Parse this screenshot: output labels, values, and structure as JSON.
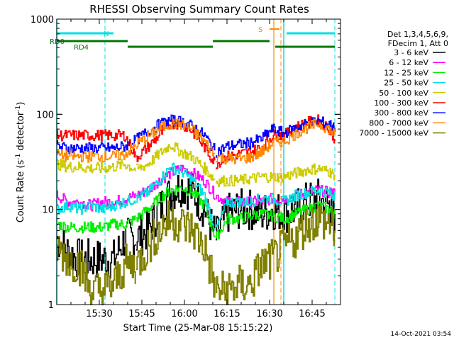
{
  "chart_data": {
    "type": "line",
    "title": "RHESSI Observing Summary Count Rates",
    "xlabel": "Start Time (25-Mar-08 15:15:22)",
    "ylabel": "Count Rate (s^-1 detector^-1)",
    "yscale": "log",
    "ylim": [
      1,
      1000
    ],
    "xlim_minutes": [
      0,
      100
    ],
    "x_ticks": [
      "15:30",
      "15:45",
      "16:00",
      "16:15",
      "16:30",
      "16:45"
    ],
    "x_tick_minutes": [
      15,
      30,
      45,
      60,
      75,
      90
    ],
    "y_ticks": [
      "1",
      "10",
      "100",
      "1000"
    ],
    "legend_header": [
      "Det 1,3,4,5,6,9,",
      "FDecim 1, Att 0"
    ],
    "timestamp": "14-Oct-2021 03:54",
    "flags": {
      "n_label": "N",
      "s_label": "S",
      "rd0_label": "RD0",
      "rd4_label": "RD4",
      "n_color": "#00e0e0",
      "rd_color": "#007700",
      "s_color": "#ff8800",
      "n_segments": [
        [
          0,
          20
        ],
        [
          81,
          98
        ]
      ],
      "rd_segments": [
        [
          0,
          25
        ],
        [
          25,
          55
        ],
        [
          55,
          75
        ],
        [
          77,
          98
        ]
      ],
      "s_segment": [
        75,
        78.5
      ]
    },
    "markers": {
      "solid_cyan_minutes": [
        0,
        80
      ],
      "dashed_cyan_minutes": [
        17,
        98
      ],
      "solid_orange_minutes": [
        76.5
      ],
      "dashed_orange_minutes": [
        79
      ]
    },
    "x": [
      0,
      4,
      8,
      12,
      16,
      20,
      24,
      28,
      32,
      36,
      40,
      44,
      48,
      52,
      56,
      60,
      64,
      68,
      72,
      76,
      80,
      84,
      88,
      92,
      96,
      98
    ],
    "gaps_after_minutes": [
      24,
      54
    ],
    "series": [
      {
        "name": "3 - 6 keV",
        "color": "#000000",
        "values": [
          5,
          3.5,
          3,
          3,
          3,
          3,
          5,
          5,
          6,
          10,
          15,
          18,
          15,
          10,
          5,
          9,
          10,
          10,
          9,
          10,
          9,
          10,
          12,
          13,
          11,
          9
        ]
      },
      {
        "name": "6 - 12 keV",
        "color": "#ff00ff",
        "values": [
          14,
          12,
          12,
          11,
          12,
          12,
          13,
          14,
          16,
          20,
          24,
          27,
          24,
          20,
          14,
          12,
          12,
          12,
          12,
          13,
          13,
          14,
          15,
          16,
          15,
          15
        ]
      },
      {
        "name": "12 - 25 keV",
        "color": "#00ee00",
        "values": [
          7,
          6.5,
          6.5,
          6.5,
          6.5,
          7,
          7,
          8,
          10,
          13,
          16,
          17,
          15,
          11,
          5,
          8,
          8,
          8.5,
          9,
          8.5,
          8,
          9,
          10,
          11,
          10,
          9
        ]
      },
      {
        "name": "25 - 50 keV",
        "color": "#00e0e0",
        "values": [
          10,
          11,
          10,
          11,
          10,
          11,
          12,
          13,
          15,
          20,
          28,
          25,
          20,
          14,
          6,
          12,
          12,
          12,
          13,
          13,
          12,
          14,
          15,
          16,
          15,
          14
        ]
      },
      {
        "name": "50 - 100 keV",
        "color": "#cccc00",
        "values": [
          30,
          28,
          28,
          27,
          27,
          28,
          30,
          26,
          30,
          38,
          48,
          40,
          35,
          27,
          20,
          20,
          20,
          21,
          22,
          22,
          22,
          24,
          26,
          27,
          25,
          23
        ]
      },
      {
        "name": "100 - 300 keV",
        "color": "#ff0000",
        "values": [
          60,
          60,
          60,
          60,
          60,
          60,
          60,
          35,
          45,
          60,
          80,
          80,
          65,
          45,
          30,
          36,
          38,
          40,
          45,
          60,
          60,
          72,
          82,
          86,
          70,
          55
        ]
      },
      {
        "name": "300 - 800 keV",
        "color": "#0000ff",
        "values": [
          46,
          44,
          44,
          44,
          44,
          44,
          46,
          54,
          66,
          78,
          86,
          84,
          74,
          60,
          40,
          46,
          48,
          50,
          55,
          70,
          63,
          72,
          80,
          85,
          78,
          72
        ]
      },
      {
        "name": "800 - 7000 keV",
        "color": "#ff8800",
        "values": [
          38,
          36,
          36,
          36,
          36,
          36,
          38,
          48,
          58,
          70,
          80,
          78,
          68,
          52,
          36,
          34,
          34,
          35,
          40,
          50,
          52,
          62,
          72,
          80,
          70,
          60
        ]
      },
      {
        "name": "7000 - 15000 keV",
        "color": "#808000",
        "values": [
          4,
          3,
          2.6,
          1.4,
          1.4,
          1.6,
          2.6,
          2.6,
          4,
          6,
          8,
          7,
          6,
          4,
          1.4,
          1.4,
          1.6,
          1.6,
          2.6,
          3,
          4,
          5,
          7,
          8,
          7,
          6
        ]
      }
    ]
  }
}
